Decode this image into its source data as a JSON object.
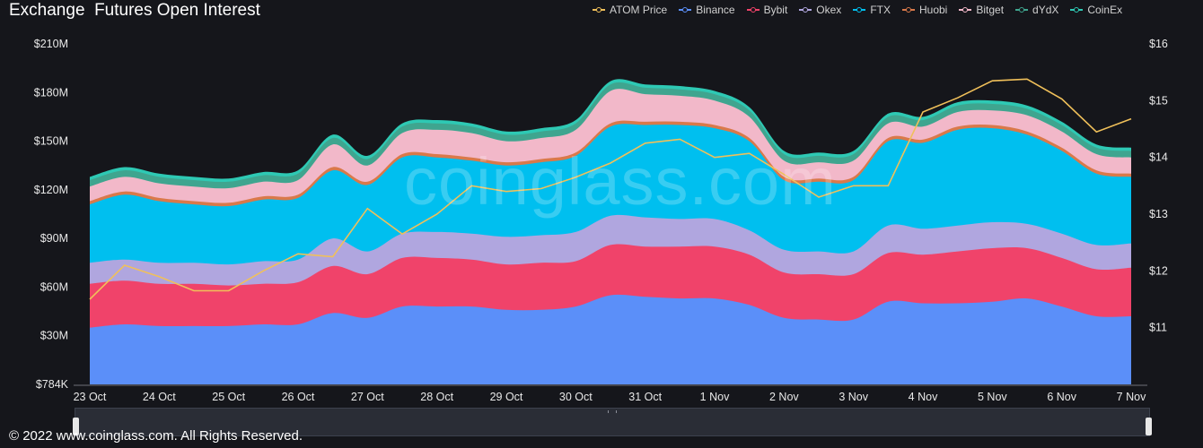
{
  "chart_data": {
    "type": "area",
    "title": "Exchange  Futures Open Interest",
    "categories": [
      "23 Oct",
      "24 Oct",
      "25 Oct",
      "26 Oct",
      "27 Oct",
      "28 Oct",
      "29 Oct",
      "30 Oct",
      "31 Oct",
      "1 Nov",
      "2 Nov",
      "3 Nov",
      "4 Nov",
      "5 Nov",
      "6 Nov",
      "7 Nov"
    ],
    "x": [
      0,
      0.5,
      1,
      1.5,
      2,
      2.5,
      3,
      3.5,
      4,
      4.5,
      5,
      5.5,
      6,
      6.5,
      7,
      7.5,
      8,
      8.5,
      9,
      9.5,
      10,
      10.5,
      11,
      11.5,
      12,
      12.5,
      13,
      13.5,
      14,
      14.5,
      15
    ],
    "stacked": true,
    "series": [
      {
        "name": "Binance",
        "color": "#5b8ff9",
        "values": [
          35,
          37,
          36,
          36,
          36,
          37,
          37,
          44,
          41,
          48,
          48,
          48,
          46,
          46,
          48,
          55,
          54,
          53,
          53,
          49,
          41,
          40,
          40,
          51,
          50,
          50,
          51,
          53,
          48,
          42,
          42
        ]
      },
      {
        "name": "Bybit",
        "color": "#f0436a",
        "values": [
          27,
          27,
          26,
          26,
          25,
          25,
          26,
          29,
          27,
          30,
          30,
          29,
          28,
          29,
          28,
          31,
          31,
          32,
          32,
          31,
          28,
          28,
          28,
          30,
          30,
          32,
          33,
          31,
          30,
          29,
          30
        ]
      },
      {
        "name": "Okex",
        "color": "#b0a6df",
        "values": [
          13,
          13,
          13,
          13,
          13,
          14,
          14,
          17,
          14,
          15,
          16,
          16,
          17,
          17,
          18,
          18,
          18,
          17,
          17,
          15,
          14,
          14,
          14,
          17,
          16,
          16,
          16,
          15,
          15,
          15,
          15
        ]
      },
      {
        "name": "FTX",
        "color": "#00bfef",
        "values": [
          36,
          40,
          38,
          36,
          36,
          38,
          38,
          42,
          41,
          47,
          46,
          45,
          44,
          45,
          47,
          55,
          57,
          58,
          56,
          55,
          43,
          43,
          44,
          52,
          53,
          59,
          58,
          55,
          51,
          44,
          41
        ]
      },
      {
        "name": "Huobi",
        "color": "#d9794a",
        "values": [
          2,
          2,
          2,
          2,
          2,
          2,
          2,
          2,
          2,
          2,
          2,
          2,
          2,
          2,
          2,
          2,
          2,
          2,
          2,
          2,
          2,
          2,
          2,
          2,
          2,
          2,
          2,
          2,
          2,
          2,
          2
        ]
      },
      {
        "name": "Bitget",
        "color": "#f2b8c9",
        "values": [
          9,
          9,
          9,
          9,
          9,
          9,
          9,
          14,
          10,
          13,
          15,
          15,
          13,
          13,
          14,
          20,
          17,
          16,
          15,
          13,
          10,
          10,
          10,
          9,
          8,
          9,
          9,
          10,
          10,
          10,
          10
        ]
      },
      {
        "name": "dYdX",
        "color": "#3fa58f",
        "values": [
          4,
          4,
          4,
          4,
          4,
          4,
          4,
          4,
          4,
          4,
          4,
          4,
          4,
          4,
          4,
          4,
          4,
          4,
          4,
          4,
          4,
          4,
          4,
          4,
          4,
          4,
          4,
          4,
          4,
          4,
          4
        ]
      },
      {
        "name": "CoinEx",
        "color": "#2ec9b4",
        "values": [
          2,
          2,
          2,
          2,
          2,
          2,
          2,
          2,
          2,
          2,
          2,
          2,
          2,
          2,
          2,
          2,
          2,
          2,
          2,
          2,
          2,
          2,
          2,
          2,
          2,
          2,
          2,
          2,
          2,
          2,
          2
        ]
      }
    ],
    "price_series": {
      "name": "ATOM Price",
      "color": "#f0c05a",
      "x": [
        0,
        0.5,
        1,
        1.5,
        2,
        2.5,
        3,
        3.5,
        4,
        4.5,
        5,
        5.5,
        6,
        6.5,
        7,
        7.5,
        8,
        8.5,
        9,
        9.5,
        10,
        10.5,
        11,
        11.5,
        12,
        12.5,
        13,
        13.5,
        14,
        14.5,
        15
      ],
      "values": [
        11.5,
        12.1,
        11.9,
        11.65,
        11.65,
        12.0,
        12.3,
        12.25,
        13.1,
        12.65,
        13.0,
        13.5,
        13.4,
        13.45,
        13.65,
        13.9,
        14.25,
        14.32,
        14.0,
        14.07,
        13.7,
        13.3,
        13.5,
        13.5,
        14.8,
        15.05,
        15.35,
        15.38,
        15.03,
        14.45,
        14.68
      ]
    },
    "y_left": {
      "ticks": [
        "$784K",
        "$30M",
        "$60M",
        "$90M",
        "$120M",
        "$150M",
        "$180M",
        "$210M"
      ],
      "ylim": [
        0,
        210
      ]
    },
    "y_right": {
      "ticks": [
        "$11",
        "$12",
        "$13",
        "$14",
        "$15",
        "$16"
      ],
      "ylim": [
        10,
        16
      ]
    },
    "legend_position": "top-right",
    "grid": "none"
  },
  "watermark": "coinglass.com",
  "footer": {
    "copyright": "© 2022 www.coinglass.com. All Rights Reserved."
  }
}
